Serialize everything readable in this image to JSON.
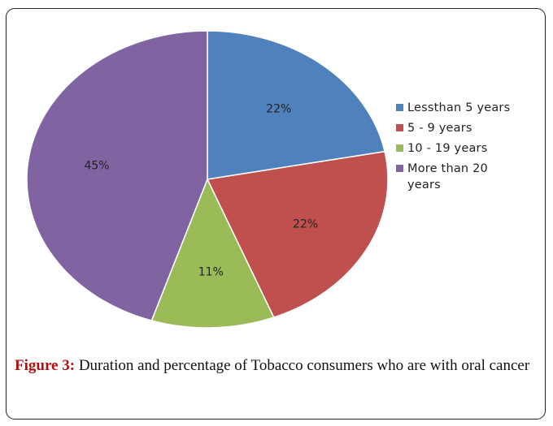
{
  "chart_data": {
    "type": "pie",
    "categories": [
      "Lessthan 5 years",
      "5 - 9 years",
      "10 - 19 years",
      "More than 20 years"
    ],
    "values": [
      22,
      22,
      11,
      45
    ],
    "data_labels": [
      "22%",
      "22%",
      "11%",
      "45%"
    ],
    "colors": [
      "#4f81bd",
      "#c0504d",
      "#9bbb59",
      "#8064a2"
    ],
    "legend_position": "right",
    "title": ""
  },
  "legend": {
    "items": [
      {
        "label": "Lessthan 5 years",
        "color": "#4f81bd"
      },
      {
        "label": "5 - 9 years",
        "color": "#c0504d"
      },
      {
        "label": "10 - 19 years",
        "color": "#9bbb59"
      },
      {
        "label": "More than 20 years",
        "color": "#8064a2"
      }
    ]
  },
  "caption": {
    "figure_label": "Figure 3:",
    "text": " Duration and percentage of Tobacco consumers who are with oral cancer"
  }
}
